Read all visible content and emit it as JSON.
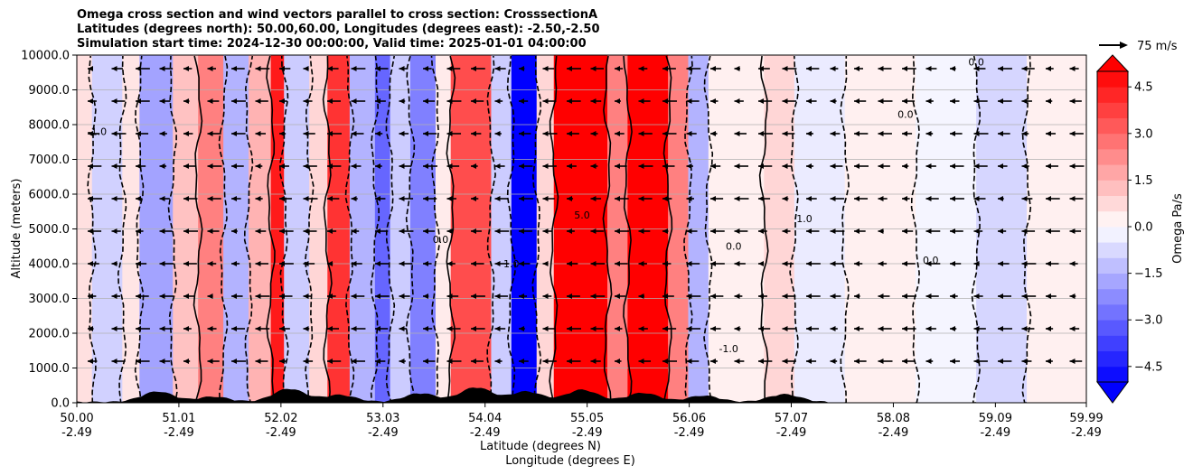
{
  "chart_data": {
    "type": "heatmap",
    "title_lines": [
      "Omega cross section and wind vectors parallel to cross section: CrosssectionA",
      "Latitudes (degrees north): 50.00,60.00, Longitudes (degrees east): -2.50,-2.50",
      "Simulation start time: 2024-12-30 00:00:00, Valid time: 2025-01-01 04:00:00"
    ],
    "xlabel_lat": "Latitude (degrees N)",
    "xlabel_lon": "Longitude (degrees E)",
    "ylabel": "Altitude (meters)",
    "xlim": [
      50.0,
      59.99
    ],
    "ylim": [
      0,
      10000
    ],
    "x_ticks": [
      {
        "lat": "50.00",
        "lon": "-2.49"
      },
      {
        "lat": "51.01",
        "lon": "-2.49"
      },
      {
        "lat": "52.02",
        "lon": "-2.49"
      },
      {
        "lat": "53.03",
        "lon": "-2.49"
      },
      {
        "lat": "54.04",
        "lon": "-2.49"
      },
      {
        "lat": "55.05",
        "lon": "-2.49"
      },
      {
        "lat": "56.06",
        "lon": "-2.49"
      },
      {
        "lat": "57.07",
        "lon": "-2.49"
      },
      {
        "lat": "58.08",
        "lon": "-2.49"
      },
      {
        "lat": "59.09",
        "lon": "-2.49"
      },
      {
        "lat": "59.99",
        "lon": "-2.49"
      }
    ],
    "y_ticks": [
      "0.0",
      "1000.0",
      "2000.0",
      "3000.0",
      "4000.0",
      "5000.0",
      "6000.0",
      "7000.0",
      "8000.0",
      "9000.0",
      "10000.0"
    ],
    "colorbar": {
      "label": "Omega Pa/s",
      "range": [
        -5.0,
        5.0
      ],
      "ticks": [
        "4.5",
        "3.0",
        "1.5",
        "0.0",
        "−1.5",
        "−3.0",
        "−4.5"
      ],
      "tick_values": [
        4.5,
        3.0,
        1.5,
        0.0,
        -1.5,
        -3.0,
        -4.5
      ],
      "extend": "both",
      "colormap": "bwr"
    },
    "quiver_key_label": "75 m/s",
    "omega_bands": [
      {
        "lat_start": 50.0,
        "lat_end": 50.15,
        "omega": 0.6
      },
      {
        "lat_start": 50.15,
        "lat_end": 50.45,
        "omega": -0.9
      },
      {
        "lat_start": 50.45,
        "lat_end": 50.62,
        "omega": 0.5
      },
      {
        "lat_start": 50.62,
        "lat_end": 50.95,
        "omega": -1.8
      },
      {
        "lat_start": 50.95,
        "lat_end": 51.2,
        "omega": 1.2
      },
      {
        "lat_start": 51.2,
        "lat_end": 51.45,
        "omega": 2.5
      },
      {
        "lat_start": 51.45,
        "lat_end": 51.7,
        "omega": -1.5
      },
      {
        "lat_start": 51.7,
        "lat_end": 51.92,
        "omega": 1.5
      },
      {
        "lat_start": 51.92,
        "lat_end": 52.05,
        "omega": 4.5
      },
      {
        "lat_start": 52.05,
        "lat_end": 52.3,
        "omega": -1.0
      },
      {
        "lat_start": 52.3,
        "lat_end": 52.48,
        "omega": 0.8
      },
      {
        "lat_start": 52.48,
        "lat_end": 52.7,
        "omega": 4.0
      },
      {
        "lat_start": 52.7,
        "lat_end": 52.95,
        "omega": -1.5
      },
      {
        "lat_start": 52.95,
        "lat_end": 53.1,
        "omega": -3.0
      },
      {
        "lat_start": 53.1,
        "lat_end": 53.3,
        "omega": -1.0
      },
      {
        "lat_start": 53.3,
        "lat_end": 53.55,
        "omega": -2.5
      },
      {
        "lat_start": 53.55,
        "lat_end": 53.7,
        "omega": 0.4
      },
      {
        "lat_start": 53.7,
        "lat_end": 54.1,
        "omega": 3.5
      },
      {
        "lat_start": 54.1,
        "lat_end": 54.3,
        "omega": -1.0
      },
      {
        "lat_start": 54.3,
        "lat_end": 54.55,
        "omega": -5.0
      },
      {
        "lat_start": 54.55,
        "lat_end": 54.72,
        "omega": 0.8
      },
      {
        "lat_start": 54.72,
        "lat_end": 55.25,
        "omega": 5.0
      },
      {
        "lat_start": 55.25,
        "lat_end": 55.45,
        "omega": 2.5
      },
      {
        "lat_start": 55.45,
        "lat_end": 55.85,
        "omega": 5.0
      },
      {
        "lat_start": 55.85,
        "lat_end": 56.05,
        "omega": 2.5
      },
      {
        "lat_start": 56.05,
        "lat_end": 56.25,
        "omega": -1.5
      },
      {
        "lat_start": 56.25,
        "lat_end": 56.8,
        "omega": 0.3
      },
      {
        "lat_start": 56.8,
        "lat_end": 57.1,
        "omega": 0.8
      },
      {
        "lat_start": 57.1,
        "lat_end": 57.6,
        "omega": -0.4
      },
      {
        "lat_start": 57.6,
        "lat_end": 58.3,
        "omega": 0.3
      },
      {
        "lat_start": 58.3,
        "lat_end": 58.9,
        "omega": -0.2
      },
      {
        "lat_start": 58.9,
        "lat_end": 59.4,
        "omega": -0.8
      },
      {
        "lat_start": 59.4,
        "lat_end": 59.99,
        "omega": 0.3
      }
    ],
    "contour_labels": [
      {
        "text": "5.0",
        "lat": 55.0,
        "alt": 5300
      },
      {
        "text": "-1.0",
        "lat": 56.45,
        "alt": 1450
      },
      {
        "text": "0.0",
        "lat": 58.9,
        "alt": 9700
      },
      {
        "text": "0.0",
        "lat": 58.2,
        "alt": 8200
      },
      {
        "text": "0.0",
        "lat": 58.45,
        "alt": 4000
      },
      {
        "text": "1.0",
        "lat": 54.3,
        "alt": 3900
      },
      {
        "text": "0.0",
        "lat": 53.6,
        "alt": 4600
      },
      {
        "text": "-1.0",
        "lat": 50.2,
        "alt": 7700
      },
      {
        "text": "0.0",
        "lat": 56.5,
        "alt": 4400
      },
      {
        "text": "1.0",
        "lat": 57.2,
        "alt": 5200
      }
    ]
  }
}
